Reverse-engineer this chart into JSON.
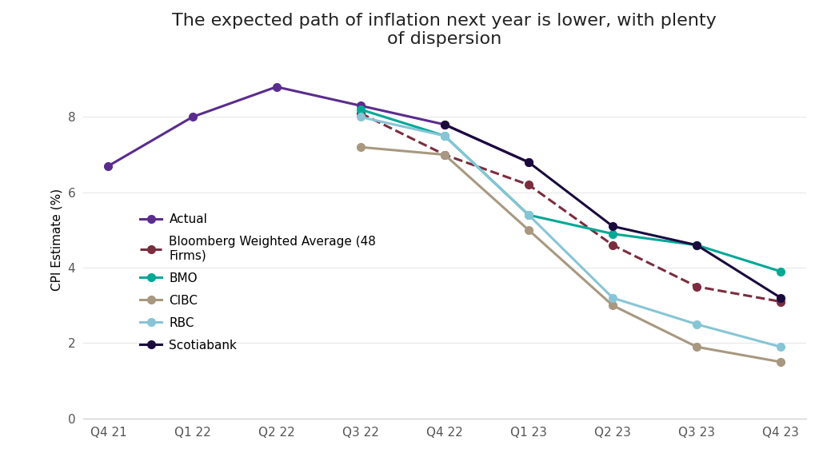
{
  "title": "The expected path of inflation next year is lower, with plenty\nof dispersion",
  "ylabel": "CPI Estimate (%)",
  "x_labels": [
    "Q4 21",
    "Q1 22",
    "Q2 22",
    "Q3 22",
    "Q4 22",
    "Q1 23",
    "Q2 23",
    "Q3 23",
    "Q4 23"
  ],
  "ylim": [
    0,
    9.5
  ],
  "yticks": [
    0,
    2,
    4,
    6,
    8
  ],
  "series": [
    {
      "name": "Actual",
      "color": "#5B2C8D",
      "linestyle": "-",
      "linewidth": 2.2,
      "marker": "o",
      "markersize": 7,
      "values": [
        6.7,
        8.0,
        8.8,
        8.3,
        7.8,
        6.8,
        null,
        null,
        null
      ]
    },
    {
      "name": "Bloomberg Weighted Average (48\nFirms)",
      "color": "#7B2D3E",
      "linestyle": "--",
      "linewidth": 2.2,
      "marker": "o",
      "markersize": 7,
      "values": [
        null,
        null,
        null,
        8.1,
        7.0,
        6.2,
        4.6,
        3.5,
        3.1
      ]
    },
    {
      "name": "BMO",
      "color": "#00A896",
      "linestyle": "-",
      "linewidth": 2.2,
      "marker": "o",
      "markersize": 7,
      "values": [
        null,
        null,
        null,
        8.2,
        7.5,
        5.4,
        4.9,
        4.6,
        3.9
      ]
    },
    {
      "name": "CIBC",
      "color": "#A89880",
      "linestyle": "-",
      "linewidth": 2.2,
      "marker": "o",
      "markersize": 7,
      "values": [
        null,
        null,
        null,
        7.2,
        7.0,
        5.0,
        3.0,
        1.9,
        1.5
      ]
    },
    {
      "name": "RBC",
      "color": "#87C5D6",
      "linestyle": "-",
      "linewidth": 2.2,
      "marker": "o",
      "markersize": 7,
      "values": [
        null,
        null,
        null,
        8.0,
        7.5,
        5.4,
        3.2,
        2.5,
        1.9
      ]
    },
    {
      "name": "Scotiabank",
      "color": "#1A0A3E",
      "linestyle": "-",
      "linewidth": 2.2,
      "marker": "o",
      "markersize": 7,
      "values": [
        null,
        null,
        null,
        null,
        7.8,
        6.8,
        5.1,
        4.6,
        3.2
      ]
    }
  ],
  "background_color": "#ffffff",
  "title_fontsize": 16,
  "legend_fontsize": 11,
  "axis_fontsize": 11,
  "tick_fontsize": 11
}
